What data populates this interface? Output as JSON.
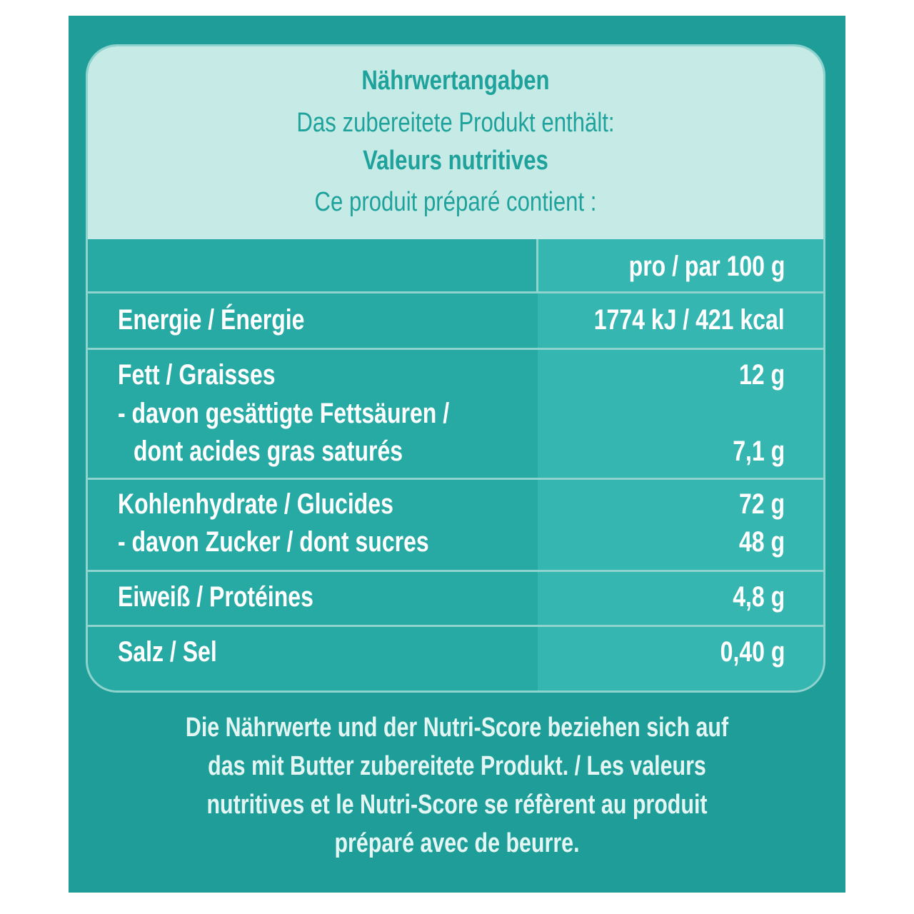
{
  "header": {
    "title_de": "Nährwertangaben",
    "subtitle_de": "Das zubereitete Produkt enthält:",
    "title_fr": "Valeurs nutritives",
    "subtitle_fr": "Ce produit préparé contient :"
  },
  "table": {
    "column_header": "pro / par 100 g",
    "rows": [
      {
        "label": "Energie / Énergie",
        "value": "1774 kJ / 421 kcal"
      },
      {
        "label": "Fett / Graisses",
        "value": "12 g"
      },
      {
        "label": "- davon gesättigte Fettsäuren /",
        "value": ""
      },
      {
        "label": "dont acides gras saturés",
        "value": "7,1 g"
      },
      {
        "label": "Kohlenhydrate / Glucides",
        "value": "72 g"
      },
      {
        "label": "- davon Zucker / dont sucres",
        "value": "48 g"
      },
      {
        "label": "Eiweiß / Protéines",
        "value": "4,8 g"
      },
      {
        "label": "Salz / Sel",
        "value": "0,40 g"
      }
    ]
  },
  "footnote": {
    "lines": [
      "Die Nährwerte und der Nutri-Score beziehen sich auf",
      "das mit Butter zubereitete Produkt. / Les valeurs",
      "nutritives et le Nutri-Score se réfèrent au produit",
      "préparé avec de beurre."
    ]
  },
  "colors": {
    "panel": "#1f9e99",
    "card": "#27aaa4",
    "header_bg": "#c6ebe6",
    "header_text": "#20a29c",
    "value_column": "#36b6b0"
  }
}
